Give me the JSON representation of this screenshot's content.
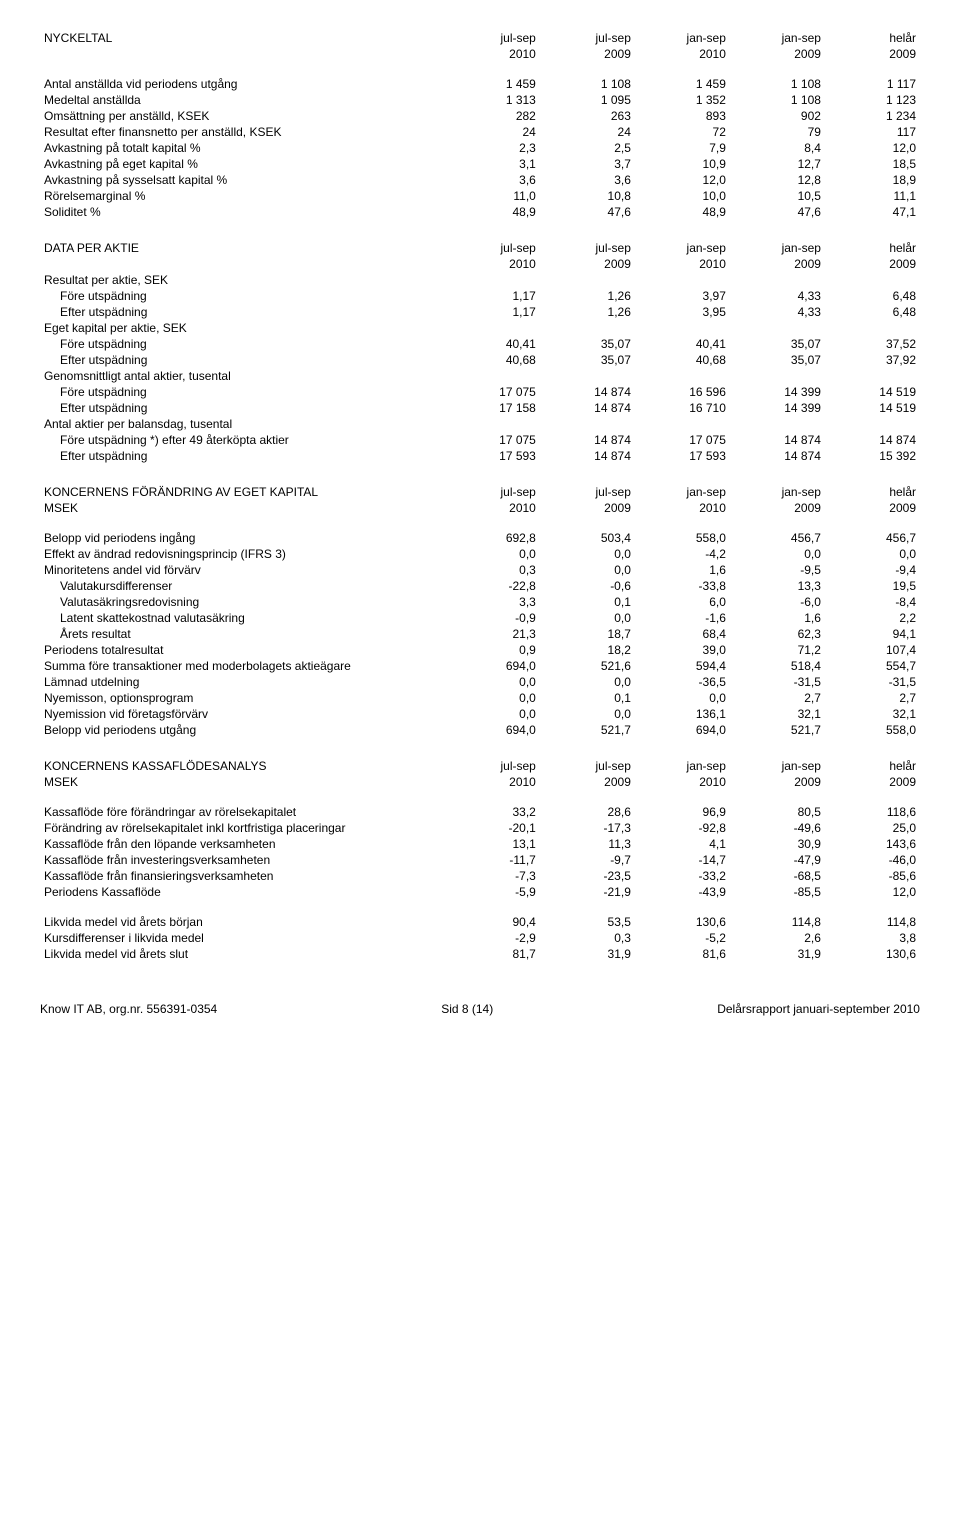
{
  "header_cols": [
    "jul-sep",
    "jul-sep",
    "jan-sep",
    "jan-sep",
    "helår"
  ],
  "header_years": [
    "2010",
    "2009",
    "2010",
    "2009",
    "2009"
  ],
  "nyckeltal": {
    "title": "NYCKELTAL",
    "rows": [
      {
        "label": "Antal anställda vid periodens utgång",
        "v": [
          "1 459",
          "1 108",
          "1 459",
          "1 108",
          "1 117"
        ]
      },
      {
        "label": "Medeltal anställda",
        "v": [
          "1 313",
          "1 095",
          "1 352",
          "1 108",
          "1 123"
        ]
      },
      {
        "label": "Omsättning per anställd, KSEK",
        "v": [
          "282",
          "263",
          "893",
          "902",
          "1 234"
        ]
      },
      {
        "label": "Resultat efter finansnetto per anställd, KSEK",
        "v": [
          "24",
          "24",
          "72",
          "79",
          "117"
        ]
      },
      {
        "label": "Avkastning på totalt kapital %",
        "v": [
          "2,3",
          "2,5",
          "7,9",
          "8,4",
          "12,0"
        ]
      },
      {
        "label": "Avkastning på eget kapital %",
        "v": [
          "3,1",
          "3,7",
          "10,9",
          "12,7",
          "18,5"
        ]
      },
      {
        "label": "Avkastning på sysselsatt kapital %",
        "v": [
          "3,6",
          "3,6",
          "12,0",
          "12,8",
          "18,9"
        ]
      },
      {
        "label": "Rörelsemarginal %",
        "v": [
          "11,0",
          "10,8",
          "10,0",
          "10,5",
          "11,1"
        ]
      },
      {
        "label": "Soliditet %",
        "v": [
          "48,9",
          "47,6",
          "48,9",
          "47,6",
          "47,1"
        ]
      }
    ]
  },
  "data_per_aktie": {
    "title": "DATA PER AKTIE",
    "groups": [
      {
        "heading": "Resultat per aktie, SEK",
        "rows": [
          {
            "label": "Före utspädning",
            "v": [
              "1,17",
              "1,26",
              "3,97",
              "4,33",
              "6,48"
            ]
          },
          {
            "label": "Efter utspädning",
            "v": [
              "1,17",
              "1,26",
              "3,95",
              "4,33",
              "6,48"
            ]
          }
        ]
      },
      {
        "heading": "Eget kapital per aktie, SEK",
        "rows": [
          {
            "label": "Före utspädning",
            "v": [
              "40,41",
              "35,07",
              "40,41",
              "35,07",
              "37,52"
            ]
          },
          {
            "label": "Efter utspädning",
            "v": [
              "40,68",
              "35,07",
              "40,68",
              "35,07",
              "37,92"
            ]
          }
        ]
      },
      {
        "heading": "Genomsnittligt antal aktier, tusental",
        "rows": [
          {
            "label": "Före utspädning",
            "v": [
              "17 075",
              "14 874",
              "16 596",
              "14 399",
              "14 519"
            ]
          },
          {
            "label": "Efter utspädning",
            "v": [
              "17 158",
              "14 874",
              "16 710",
              "14 399",
              "14 519"
            ]
          }
        ]
      },
      {
        "heading": "Antal aktier per balansdag, tusental",
        "rows": [
          {
            "label": "Före utspädning  *) efter 49 återköpta aktier",
            "v": [
              "17 075",
              "14 874",
              "17 075",
              "14 874",
              "14 874"
            ]
          },
          {
            "label": "Efter utspädning",
            "v": [
              "17 593",
              "14 874",
              "17 593",
              "14 874",
              "15 392"
            ]
          }
        ]
      }
    ]
  },
  "eget_kapital": {
    "title": "KONCERNENS FÖRÄNDRING AV EGET KAPITAL",
    "subtitle": "MSEK",
    "rows": [
      {
        "label": "Belopp vid periodens ingång",
        "bold": true,
        "v": [
          "692,8",
          "503,4",
          "558,0",
          "456,7",
          "456,7"
        ]
      },
      {
        "label": "Effekt av ändrad redovisningsprincip (IFRS 3)",
        "v": [
          "0,0",
          "0,0",
          "-4,2",
          "0,0",
          "0,0"
        ]
      },
      {
        "label": "Minoritetens andel vid förvärv",
        "v": [
          "0,3",
          "0,0",
          "1,6",
          "-9,5",
          "-9,4"
        ]
      },
      {
        "label": "Valutakursdifferenser",
        "indent": true,
        "v": [
          "-22,8",
          "-0,6",
          "-33,8",
          "13,3",
          "19,5"
        ]
      },
      {
        "label": "Valutasäkringsredovisning",
        "indent": true,
        "v": [
          "3,3",
          "0,1",
          "6,0",
          "-6,0",
          "-8,4"
        ]
      },
      {
        "label": "Latent skattekostnad valutasäkring",
        "indent": true,
        "v": [
          "-0,9",
          "0,0",
          "-1,6",
          "1,6",
          "2,2"
        ]
      },
      {
        "label": "Årets resultat",
        "indent": true,
        "v": [
          "21,3",
          "18,7",
          "68,4",
          "62,3",
          "94,1"
        ]
      },
      {
        "label": "Periodens totalresultat",
        "bold": true,
        "v": [
          "0,9",
          "18,2",
          "39,0",
          "71,2",
          "107,4"
        ]
      },
      {
        "label": "Summa före transaktioner med moderbolagets aktieägare",
        "bold": true,
        "v": [
          "694,0",
          "521,6",
          "594,4",
          "518,4",
          "554,7"
        ]
      },
      {
        "label": "Lämnad utdelning",
        "v": [
          "0,0",
          "0,0",
          "-36,5",
          "-31,5",
          "-31,5"
        ]
      },
      {
        "label": "Nyemisson, optionsprogram",
        "v": [
          "0,0",
          "0,1",
          "0,0",
          "2,7",
          "2,7"
        ]
      },
      {
        "label": "Nyemission vid företagsförvärv",
        "v": [
          "0,0",
          "0,0",
          "136,1",
          "32,1",
          "32,1"
        ]
      },
      {
        "label": "Belopp vid periodens utgång",
        "bold": true,
        "v": [
          "694,0",
          "521,7",
          "694,0",
          "521,7",
          "558,0"
        ]
      }
    ]
  },
  "kassaflode": {
    "title": "KONCERNENS KASSAFLÖDESANALYS",
    "subtitle": "MSEK",
    "rows": [
      {
        "label": "Kassaflöde före förändringar av rörelsekapitalet",
        "v": [
          "33,2",
          "28,6",
          "96,9",
          "80,5",
          "118,6"
        ]
      },
      {
        "label": "Förändring av rörelsekapitalet inkl kortfristiga placeringar",
        "v": [
          "-20,1",
          "-17,3",
          "-92,8",
          "-49,6",
          "25,0"
        ]
      },
      {
        "label": "Kassaflöde från den löpande verksamheten",
        "bold": true,
        "v": [
          "13,1",
          "11,3",
          "4,1",
          "30,9",
          "143,6"
        ]
      },
      {
        "label": "Kassaflöde från investeringsverksamheten",
        "v": [
          "-11,7",
          "-9,7",
          "-14,7",
          "-47,9",
          "-46,0"
        ]
      },
      {
        "label": "Kassaflöde från finansieringsverksamheten",
        "v": [
          "-7,3",
          "-23,5",
          "-33,2",
          "-68,5",
          "-85,6"
        ]
      },
      {
        "label": "Periodens Kassaflöde",
        "bold": true,
        "v": [
          "-5,9",
          "-21,9",
          "-43,9",
          "-85,5",
          "12,0"
        ]
      }
    ],
    "rows2": [
      {
        "label": "Likvida medel vid årets början",
        "v": [
          "90,4",
          "53,5",
          "130,6",
          "114,8",
          "114,8"
        ]
      },
      {
        "label": "Kursdifferenser i likvida medel",
        "v": [
          "-2,9",
          "0,3",
          "-5,2",
          "2,6",
          "3,8"
        ]
      },
      {
        "label": "Likvida medel vid årets slut",
        "v": [
          "81,7",
          "31,9",
          "81,6",
          "31,9",
          "130,6"
        ]
      }
    ]
  },
  "footer": {
    "left": "Know IT AB, org.nr. 556391-0354",
    "center": "Sid 8 (14)",
    "right": "Delårsrapport januari-september 2010"
  }
}
